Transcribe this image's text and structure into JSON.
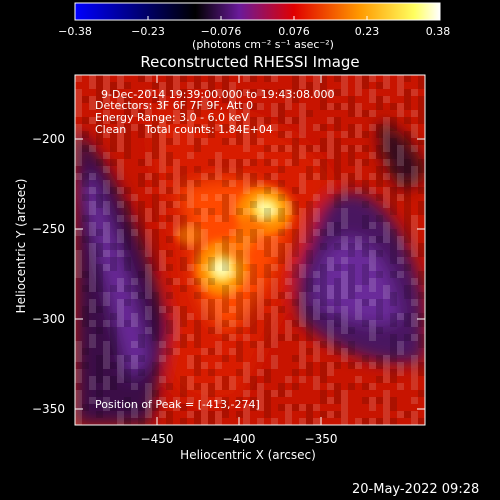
{
  "chart_data": {
    "type": "heatmap",
    "title": "Reconstructed RHESSI Image",
    "xlabel": "Heliocentric X (arcsec)",
    "ylabel": "Heliocentric Y (arcsec)",
    "x_ticks": [
      -450,
      -400,
      -350
    ],
    "y_ticks": [
      -200,
      -250,
      -300,
      -350
    ],
    "xlim": [
      -495,
      -410
    ],
    "ylim": [
      -362,
      -170
    ],
    "colorbar": {
      "ticks": [
        "-0.38",
        "-0.23",
        "-0.076",
        "0.076",
        "0.23",
        "0.38"
      ],
      "range": [
        -0.38,
        0.38
      ],
      "units": "(photons cm⁻² s⁻¹ asec⁻²)",
      "colormap": [
        "#0000ff",
        "#000000",
        "#7a1aa8",
        "#ff0000",
        "#ff9900",
        "#ffff66",
        "#ffffff"
      ]
    },
    "sources": [
      {
        "x": -413,
        "y": -274,
        "peak": 0.38
      },
      {
        "x": -387,
        "y": -236,
        "peak": 0.33
      }
    ],
    "annotations": {
      "time_range": "9-Dec-2014 19:39:00.000 to 19:43:08.000",
      "detectors": "Detectors: 3F 6F 7F 9F, Att 0",
      "energy_range": "Energy Range: 3.0 - 6.0 keV",
      "method": "Clean",
      "total_counts": "Total counts: 1.84E+04",
      "peak_position": "Position of Peak = [-413,-274]"
    }
  },
  "footer_date": "20-May-2022 09:28"
}
